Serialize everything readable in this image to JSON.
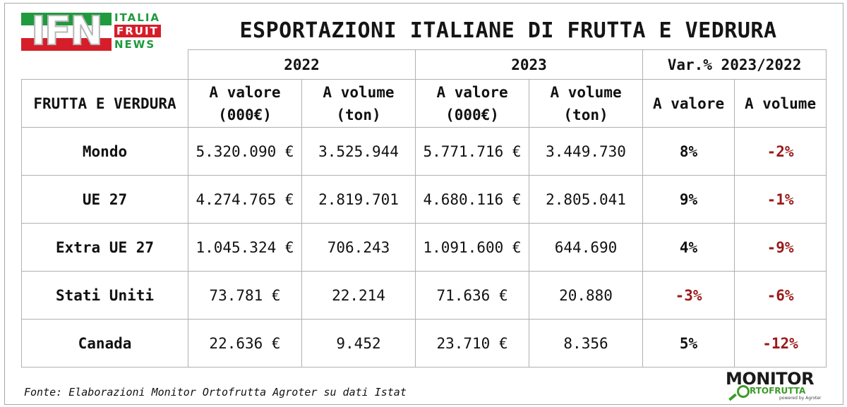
{
  "header": {
    "logo": {
      "main": "IFN",
      "line1": "ITALIA",
      "line2": "FRUIT",
      "line3": "NEWS"
    },
    "title": "ESPORTAZIONI ITALIANE DI FRUTTA E VEDRURA"
  },
  "table": {
    "year_headers": [
      "2022",
      "2023",
      "Var.% 2023/2022"
    ],
    "first_col_header": "FRUTTA E VERDURA",
    "col_headers": [
      {
        "line1": "A valore",
        "line2": "(000€)"
      },
      {
        "line1": "A volume",
        "line2": "(ton)"
      },
      {
        "line1": "A valore",
        "line2": "(000€)"
      },
      {
        "line1": "A volume",
        "line2": "(ton)"
      },
      {
        "line1": "A valore",
        "line2": ""
      },
      {
        "line1": "A volume",
        "line2": ""
      }
    ],
    "rows": [
      {
        "label": "Mondo",
        "val2022": "5.320.090 €",
        "vol2022": "3.525.944",
        "val2023": "5.771.716 €",
        "vol2023": "3.449.730",
        "var_val": "8%",
        "var_vol": "-2%"
      },
      {
        "label": "UE 27",
        "val2022": "4.274.765 €",
        "vol2022": "2.819.701",
        "val2023": "4.680.116 €",
        "vol2023": "2.805.041",
        "var_val": "9%",
        "var_vol": "-1%"
      },
      {
        "label": "Extra UE 27",
        "val2022": "1.045.324 €",
        "vol2022": "706.243",
        "val2023": "1.091.600 €",
        "vol2023": "644.690",
        "var_val": "4%",
        "var_vol": "-9%"
      },
      {
        "label": "Stati Uniti",
        "val2022": "73.781 €",
        "vol2022": "22.214",
        "val2023": "71.636 €",
        "vol2023": "20.880",
        "var_val": "-3%",
        "var_vol": "-6%"
      },
      {
        "label": "Canada",
        "val2022": "22.636 €",
        "vol2022": "9.452",
        "val2023": "23.710 €",
        "vol2023": "8.356",
        "var_val": "5%",
        "var_vol": "-12%"
      }
    ]
  },
  "footer": {
    "source": "Fonte: Elaborazioni Monitor Ortofrutta Agroter su dati Istat",
    "brand_top": "MONITOR",
    "brand_bottom": "RTOFRUTTA",
    "brand_sub": "powered by Agroter"
  },
  "colors": {
    "negative": "#9a1a1a",
    "logo_green": "#1f9a3e",
    "logo_red": "#d51e2a"
  }
}
